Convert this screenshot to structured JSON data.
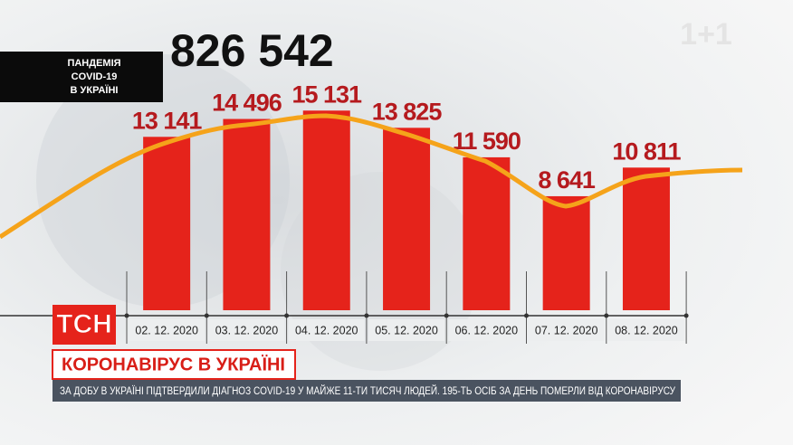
{
  "header": {
    "label_lines": [
      "ПАНДЕМІЯ",
      "COVID-19",
      "В УКРАЇНІ"
    ],
    "total": "826 542",
    "channel": "1+1"
  },
  "chart_data": {
    "type": "bar",
    "categories": [
      "02. 12. 2020",
      "03. 12. 2020",
      "04. 12. 2020",
      "05. 12. 2020",
      "06. 12. 2020",
      "07. 12. 2020",
      "08. 12. 2020"
    ],
    "values": [
      13141,
      14496,
      15131,
      13825,
      11590,
      8641,
      10811
    ],
    "value_labels": [
      "13 141",
      "14 496",
      "15 131",
      "13 825",
      "11 590",
      "8 641",
      "10 811"
    ],
    "color": "#e5231b",
    "ylim": [
      0,
      17000
    ]
  },
  "banner": {
    "logo": "ТСН",
    "headline": "КОРОНАВІРУС В УКРАЇНІ",
    "ticker": "ЗА ДОБУ В УКРАЇНІ ПІДТВЕРДИЛИ ДІАГНОЗ COVID-19 У МАЙЖЕ 11-ТИ ТИСЯЧ ЛЮДЕЙ. 195-ТЬ ОСІБ ЗА ДЕНЬ ПОМЕРЛИ ВІД КОРОНАВІРУСУ"
  }
}
